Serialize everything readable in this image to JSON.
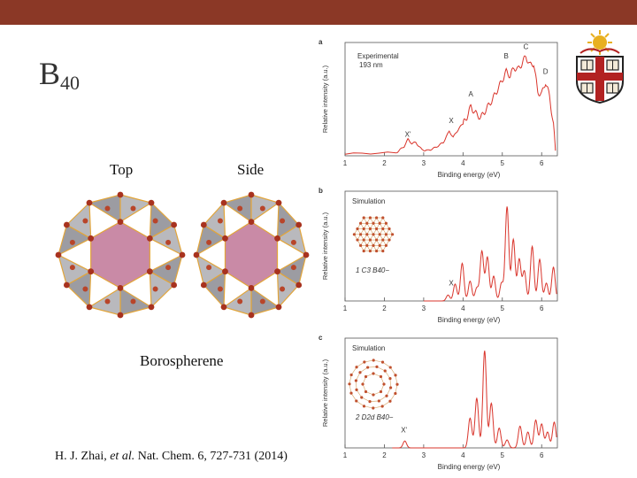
{
  "header": {
    "bar_color": "#8b3826"
  },
  "slide": {
    "title_main": "B",
    "title_sub": "40",
    "label_top": "Top",
    "label_side": "Side",
    "caption": "Borospherene",
    "citation_authors": "H. J. Zhai, ",
    "citation_etal": "et al.",
    "citation_rest": " Nat. Chem. 6, 727-731 (2014)"
  },
  "logo": {
    "name": "shield-logo",
    "colors": {
      "red": "#b22222",
      "gold": "#e8b020"
    }
  },
  "chart_data": [
    {
      "type": "line",
      "panel_letter": "a",
      "legend": [
        "Experimental",
        "193 nm"
      ],
      "xlabel": "Binding energy (eV)",
      "ylabel": "Relative intensity (a.u.)",
      "xlim": [
        1,
        6.4
      ],
      "xticks": [
        1,
        2,
        3,
        4,
        5,
        6
      ],
      "peak_labels": [
        {
          "text": "X'",
          "x": 2.6,
          "y": 0.17
        },
        {
          "text": "X",
          "x": 3.7,
          "y": 0.3
        },
        {
          "text": "A",
          "x": 4.2,
          "y": 0.56
        },
        {
          "text": "B",
          "x": 5.1,
          "y": 0.93
        },
        {
          "text": "C",
          "x": 5.6,
          "y": 1.02
        },
        {
          "text": "D",
          "x": 6.1,
          "y": 0.78
        }
      ],
      "x": [
        1.0,
        2.3,
        2.5,
        2.6,
        2.7,
        2.8,
        2.95,
        3.1,
        3.3,
        3.5,
        3.65,
        3.75,
        3.9,
        4.0,
        4.1,
        4.2,
        4.3,
        4.45,
        4.6,
        4.75,
        4.9,
        5.0,
        5.1,
        5.2,
        5.3,
        5.4,
        5.5,
        5.6,
        5.7,
        5.8,
        5.9,
        6.0,
        6.1,
        6.2,
        6.3,
        6.35
      ],
      "y": [
        0.02,
        0.03,
        0.09,
        0.16,
        0.12,
        0.13,
        0.06,
        0.05,
        0.08,
        0.13,
        0.24,
        0.18,
        0.27,
        0.31,
        0.38,
        0.48,
        0.42,
        0.37,
        0.46,
        0.55,
        0.66,
        0.74,
        0.82,
        0.78,
        0.86,
        0.84,
        0.9,
        0.97,
        0.88,
        0.9,
        0.62,
        0.6,
        0.72,
        0.58,
        0.3,
        0.05
      ]
    },
    {
      "type": "line",
      "panel_letter": "b",
      "inset_label": "Simulation",
      "isomer_number": "1",
      "isomer_label": "C3 B40−",
      "xlabel": "Binding energy (eV)",
      "ylabel": "Relative intensity (a.u.)",
      "xlim": [
        1,
        6.4
      ],
      "xticks": [
        1,
        2,
        3,
        4,
        5,
        6
      ],
      "peak_labels": [
        {
          "text": "X",
          "x": 3.7,
          "y": 0.14
        }
      ],
      "peaks": [
        {
          "x": 3.62,
          "h": 0.06
        },
        {
          "x": 3.8,
          "h": 0.17
        },
        {
          "x": 3.98,
          "h": 0.38
        },
        {
          "x": 4.18,
          "h": 0.2
        },
        {
          "x": 4.35,
          "h": 0.13
        },
        {
          "x": 4.48,
          "h": 0.5
        },
        {
          "x": 4.62,
          "h": 0.44
        },
        {
          "x": 4.78,
          "h": 0.25
        },
        {
          "x": 4.98,
          "h": 0.18
        },
        {
          "x": 5.12,
          "h": 0.95
        },
        {
          "x": 5.28,
          "h": 0.62
        },
        {
          "x": 5.43,
          "h": 0.42
        },
        {
          "x": 5.56,
          "h": 0.3
        },
        {
          "x": 5.76,
          "h": 0.55
        },
        {
          "x": 5.95,
          "h": 0.42
        },
        {
          "x": 6.12,
          "h": 0.18
        },
        {
          "x": 6.3,
          "h": 0.34
        }
      ]
    },
    {
      "type": "line",
      "panel_letter": "c",
      "inset_label": "Simulation",
      "isomer_number": "2",
      "isomer_label": "D2d B40−",
      "xlabel": "Binding energy (eV)",
      "ylabel": "Relative intensity (a.u.)",
      "xlim": [
        1,
        6.4
      ],
      "xticks": [
        1,
        2,
        3,
        4,
        5,
        6
      ],
      "peak_labels": [
        {
          "text": "X'",
          "x": 2.5,
          "y": 0.14
        }
      ],
      "peaks": [
        {
          "x": 2.52,
          "h": 0.07
        },
        {
          "x": 4.18,
          "h": 0.3
        },
        {
          "x": 4.35,
          "h": 0.5
        },
        {
          "x": 4.55,
          "h": 0.98
        },
        {
          "x": 4.72,
          "h": 0.45
        },
        {
          "x": 4.92,
          "h": 0.2
        },
        {
          "x": 5.12,
          "h": 0.08
        },
        {
          "x": 5.45,
          "h": 0.22
        },
        {
          "x": 5.65,
          "h": 0.16
        },
        {
          "x": 5.85,
          "h": 0.28
        },
        {
          "x": 6.0,
          "h": 0.24
        },
        {
          "x": 6.15,
          "h": 0.16
        },
        {
          "x": 6.32,
          "h": 0.26
        }
      ]
    }
  ]
}
